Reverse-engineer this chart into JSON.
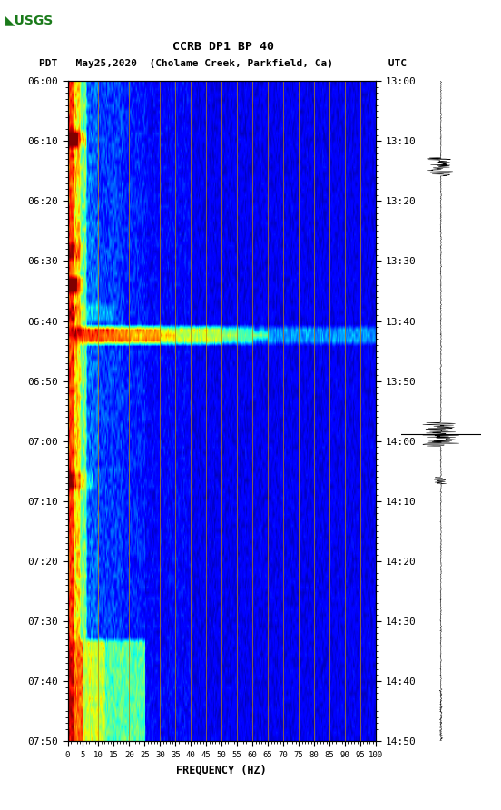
{
  "title_line1": "CCRB DP1 BP 40",
  "title_line2": "PDT   May25,2020  (Cholame Creek, Parkfield, Ca)         UTC",
  "xlabel": "FREQUENCY (HZ)",
  "freq_ticks": [
    0,
    5,
    10,
    15,
    20,
    25,
    30,
    35,
    40,
    45,
    50,
    55,
    60,
    65,
    70,
    75,
    80,
    85,
    90,
    95,
    100
  ],
  "time_ticks_left": [
    "06:00",
    "06:10",
    "06:20",
    "06:30",
    "06:40",
    "06:50",
    "07:00",
    "07:10",
    "07:20",
    "07:30",
    "07:40",
    "07:50"
  ],
  "time_ticks_right": [
    "13:00",
    "13:10",
    "13:20",
    "13:30",
    "13:40",
    "13:50",
    "14:00",
    "14:10",
    "14:20",
    "14:30",
    "14:40",
    "14:50"
  ],
  "freq_min": 0,
  "freq_max": 100,
  "bg_color": "#ffffff",
  "spectrogram_bg": "#0000AA",
  "vertical_line_color": "#B8860B",
  "vertical_line_freqs": [
    10,
    20,
    30,
    35,
    40,
    45,
    50,
    55,
    60,
    65,
    70,
    75,
    80,
    85,
    90,
    95
  ],
  "font_family": "monospace"
}
